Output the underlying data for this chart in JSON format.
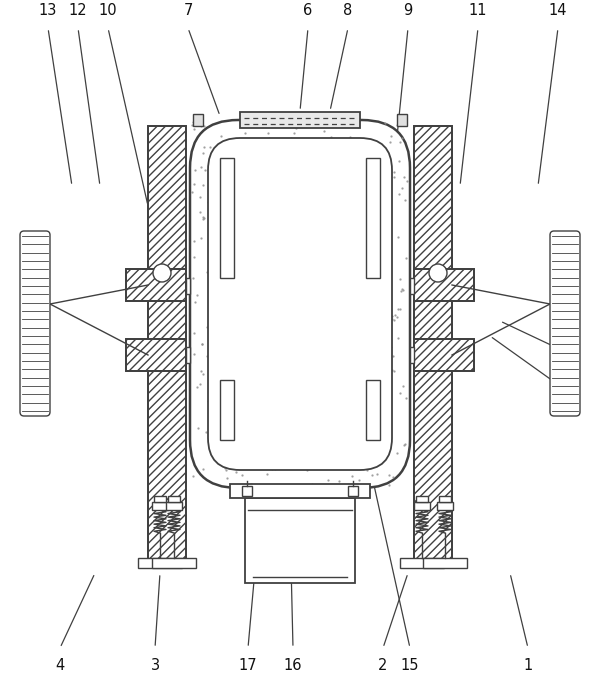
{
  "bg_color": "#ffffff",
  "line_color": "#404040",
  "label_color": "#111111",
  "fig_w": 6.0,
  "fig_h": 6.76,
  "dpi": 100,
  "label_fontsize": 10.5,
  "top_labels": {
    "13": [
      48,
      658,
      72,
      490
    ],
    "12": [
      78,
      658,
      100,
      490
    ],
    "10": [
      108,
      658,
      148,
      470
    ],
    "7": [
      188,
      658,
      220,
      560
    ],
    "6": [
      308,
      658,
      300,
      565
    ],
    "8": [
      348,
      658,
      330,
      565
    ],
    "9": [
      408,
      658,
      390,
      470
    ],
    "11": [
      478,
      658,
      460,
      490
    ],
    "14": [
      558,
      658,
      538,
      490
    ]
  },
  "bot_labels": {
    "4": [
      60,
      18,
      95,
      103
    ],
    "3": [
      155,
      18,
      160,
      103
    ],
    "17": [
      248,
      18,
      265,
      218
    ],
    "16": [
      293,
      18,
      288,
      240
    ],
    "15": [
      410,
      18,
      368,
      218
    ],
    "2": [
      383,
      18,
      408,
      103
    ],
    "1": [
      528,
      18,
      510,
      103
    ]
  },
  "side_labels": {
    "5": [
      553,
      330,
      500,
      355
    ],
    "18": [
      553,
      295,
      490,
      340
    ]
  }
}
